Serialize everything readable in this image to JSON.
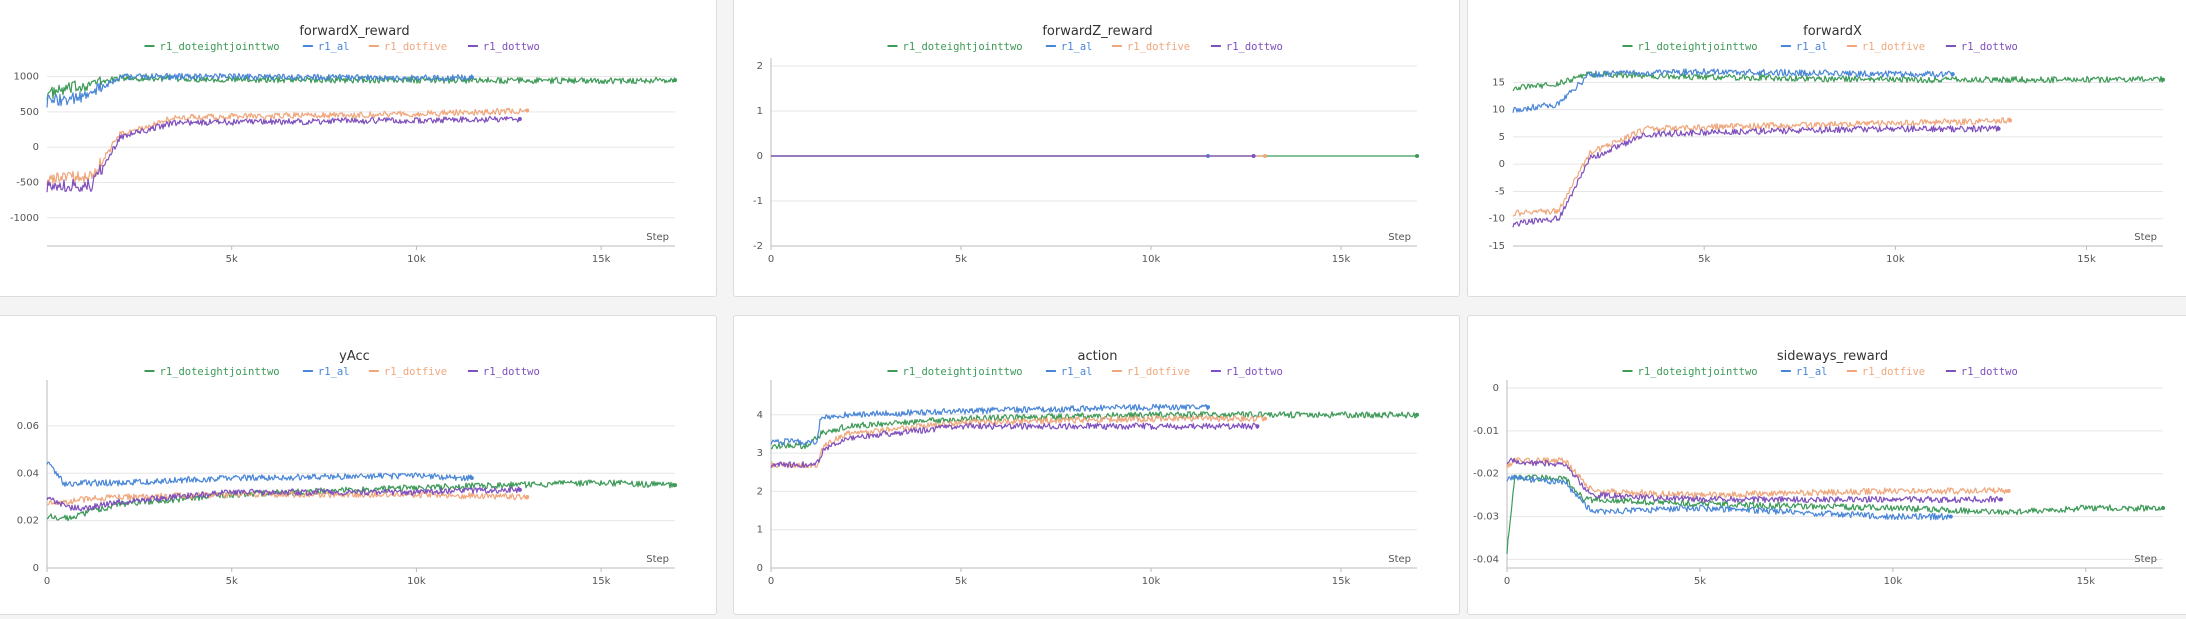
{
  "colors": {
    "r1_doteightjointtwo": "#3d9a57",
    "r1_al": "#4a86d8",
    "r1_dotfive": "#f0a77c",
    "r1_dottwo": "#7f4fbd"
  },
  "legend": [
    "r1_doteightjointtwo",
    "r1_al",
    "r1_dotfive",
    "r1_dottwo"
  ],
  "xlabel": "Step",
  "chart_data": [
    {
      "type": "line",
      "title": "forwardX_reward",
      "xlabel": "Step",
      "ylim": [
        -1400,
        1150
      ],
      "yticks": [
        -1000,
        -500,
        0,
        500,
        1000
      ],
      "xticks": [
        5000,
        10000,
        15000
      ],
      "xticklabels": [
        "5k",
        "10k",
        "15k"
      ],
      "series": [
        {
          "name": "r1_doteightjointtwo",
          "x": [
            0,
            1000,
            2000,
            5000,
            10000,
            15000,
            17000
          ],
          "y": [
            750,
            880,
            980,
            960,
            950,
            940,
            950
          ]
        },
        {
          "name": "r1_al",
          "x": [
            0,
            1000,
            2000,
            5000,
            10000,
            11500
          ],
          "y": [
            650,
            700,
            1000,
            1000,
            980,
            990
          ]
        },
        {
          "name": "r1_dotfive",
          "x": [
            0,
            1200,
            2000,
            3500,
            6000,
            10000,
            13000
          ],
          "y": [
            -450,
            -420,
            200,
            420,
            440,
            470,
            520
          ]
        },
        {
          "name": "r1_dottwo",
          "x": [
            0,
            1200,
            2000,
            3500,
            6000,
            10000,
            12800
          ],
          "y": [
            -550,
            -540,
            150,
            350,
            360,
            380,
            400
          ]
        }
      ]
    },
    {
      "type": "line",
      "title": "forwardZ_reward",
      "xlabel": "Step",
      "ylim": [
        -2,
        2
      ],
      "yticks": [
        -2,
        -1,
        0,
        1,
        2
      ],
      "xticks": [
        0,
        5000,
        10000,
        15000
      ],
      "xticklabels": [
        "0",
        "5k",
        "10k",
        "15k"
      ],
      "series": [
        {
          "name": "r1_doteightjointtwo",
          "x": [
            0,
            17000
          ],
          "y": [
            0,
            0
          ]
        },
        {
          "name": "r1_al",
          "x": [
            0,
            11500
          ],
          "y": [
            0,
            0
          ]
        },
        {
          "name": "r1_dotfive",
          "x": [
            0,
            13000
          ],
          "y": [
            0,
            0
          ]
        },
        {
          "name": "r1_dottwo",
          "x": [
            0,
            12700
          ],
          "y": [
            0,
            0
          ]
        }
      ]
    },
    {
      "type": "line",
      "title": "forwardX",
      "xlabel": "Step",
      "ylim": [
        -15,
        18
      ],
      "yticks": [
        -15,
        -10,
        -5,
        0,
        5,
        10,
        15
      ],
      "xticks": [
        5000,
        10000,
        15000
      ],
      "xticklabels": [
        "5k",
        "10k",
        "15k"
      ],
      "series": [
        {
          "name": "r1_doteightjointtwo",
          "x": [
            0,
            1000,
            2000,
            5000,
            10000,
            15000,
            17000
          ],
          "y": [
            14,
            14.5,
            16.5,
            16,
            15.5,
            15.5,
            15.5
          ]
        },
        {
          "name": "r1_al",
          "x": [
            0,
            1200,
            2000,
            5000,
            10000,
            11500
          ],
          "y": [
            10,
            11,
            16.5,
            17,
            16.5,
            16.5
          ]
        },
        {
          "name": "r1_dotfive",
          "x": [
            0,
            1200,
            2000,
            3500,
            6000,
            10000,
            13000
          ],
          "y": [
            -9,
            -8.5,
            2,
            6.5,
            7,
            7.5,
            8
          ]
        },
        {
          "name": "r1_dottwo",
          "x": [
            0,
            1200,
            2000,
            3500,
            6000,
            10000,
            12700
          ],
          "y": [
            -11,
            -10,
            1,
            5.5,
            6,
            6.5,
            6.5
          ]
        }
      ]
    },
    {
      "type": "line",
      "title": "yAcc",
      "xlabel": "Step",
      "ylim": [
        0,
        0.076
      ],
      "yticks": [
        0,
        0.02,
        0.04,
        0.06
      ],
      "xticks": [
        0,
        5000,
        10000,
        15000
      ],
      "xticklabels": [
        "0",
        "5k",
        "10k",
        "15k"
      ],
      "series": [
        {
          "name": "r1_doteightjointtwo",
          "x": [
            0,
            500,
            1000,
            2000,
            5000,
            10000,
            15000,
            17000
          ],
          "y": [
            0.022,
            0.021,
            0.023,
            0.027,
            0.031,
            0.034,
            0.036,
            0.035
          ]
        },
        {
          "name": "r1_al",
          "x": [
            0,
            500,
            1000,
            2000,
            5000,
            10000,
            11500
          ],
          "y": [
            0.045,
            0.035,
            0.036,
            0.036,
            0.038,
            0.039,
            0.038
          ]
        },
        {
          "name": "r1_dotfive",
          "x": [
            0,
            500,
            1000,
            2000,
            5000,
            10000,
            13000
          ],
          "y": [
            0.028,
            0.028,
            0.029,
            0.03,
            0.031,
            0.031,
            0.03
          ]
        },
        {
          "name": "r1_dottwo",
          "x": [
            0,
            500,
            1000,
            2000,
            5000,
            10000,
            12800
          ],
          "y": [
            0.03,
            0.026,
            0.025,
            0.028,
            0.032,
            0.032,
            0.033
          ]
        }
      ]
    },
    {
      "type": "line",
      "title": "action",
      "xlabel": "Step",
      "ylim": [
        0,
        4.7
      ],
      "yticks": [
        0,
        1,
        2,
        3,
        4
      ],
      "xticks": [
        0,
        5000,
        10000,
        15000
      ],
      "xticklabels": [
        "0",
        "5k",
        "10k",
        "15k"
      ],
      "series": [
        {
          "name": "r1_doteightjointtwo",
          "x": [
            0,
            1000,
            1300,
            2000,
            5000,
            10000,
            15000,
            17000
          ],
          "y": [
            3.2,
            3.2,
            3.5,
            3.7,
            3.9,
            4.0,
            4.0,
            4.0
          ]
        },
        {
          "name": "r1_al",
          "x": [
            0,
            1200,
            1300,
            2000,
            5000,
            10000,
            11500
          ],
          "y": [
            3.3,
            3.3,
            3.9,
            4.0,
            4.1,
            4.2,
            4.2
          ]
        },
        {
          "name": "r1_dotfive",
          "x": [
            0,
            1200,
            1400,
            2000,
            5000,
            10000,
            13000
          ],
          "y": [
            2.7,
            2.7,
            3.2,
            3.5,
            3.8,
            3.9,
            3.9
          ]
        },
        {
          "name": "r1_dottwo",
          "x": [
            0,
            1200,
            1400,
            2000,
            5000,
            10000,
            12800
          ],
          "y": [
            2.7,
            2.7,
            3.1,
            3.4,
            3.7,
            3.7,
            3.7
          ]
        }
      ]
    },
    {
      "type": "line",
      "title": "sideways_reward",
      "xlabel": "Step",
      "ylim": [
        -0.042,
        0.0
      ],
      "yticks": [
        0,
        -0.01,
        -0.02,
        -0.03,
        -0.04
      ],
      "xticks": [
        0,
        5000,
        10000,
        15000
      ],
      "xticklabels": [
        "0",
        "5k",
        "10k",
        "15k"
      ],
      "series": [
        {
          "name": "r1_doteightjointtwo",
          "x": [
            0,
            200,
            1500,
            2000,
            5000,
            10000,
            13000,
            15000,
            17000
          ],
          "y": [
            -0.038,
            -0.021,
            -0.021,
            -0.026,
            -0.027,
            -0.028,
            -0.029,
            -0.028,
            -0.028
          ]
        },
        {
          "name": "r1_al",
          "x": [
            0,
            200,
            1500,
            2200,
            5000,
            10000,
            11500
          ],
          "y": [
            -0.021,
            -0.021,
            -0.022,
            -0.029,
            -0.028,
            -0.03,
            -0.03
          ]
        },
        {
          "name": "r1_dotfive",
          "x": [
            0,
            200,
            1500,
            2200,
            5000,
            10000,
            13000
          ],
          "y": [
            -0.018,
            -0.017,
            -0.017,
            -0.024,
            -0.025,
            -0.024,
            -0.024
          ]
        },
        {
          "name": "r1_dottwo",
          "x": [
            0,
            200,
            1500,
            2200,
            5000,
            10000,
            12800
          ],
          "y": [
            -0.017,
            -0.017,
            -0.018,
            -0.025,
            -0.026,
            -0.026,
            -0.026
          ]
        }
      ]
    }
  ]
}
